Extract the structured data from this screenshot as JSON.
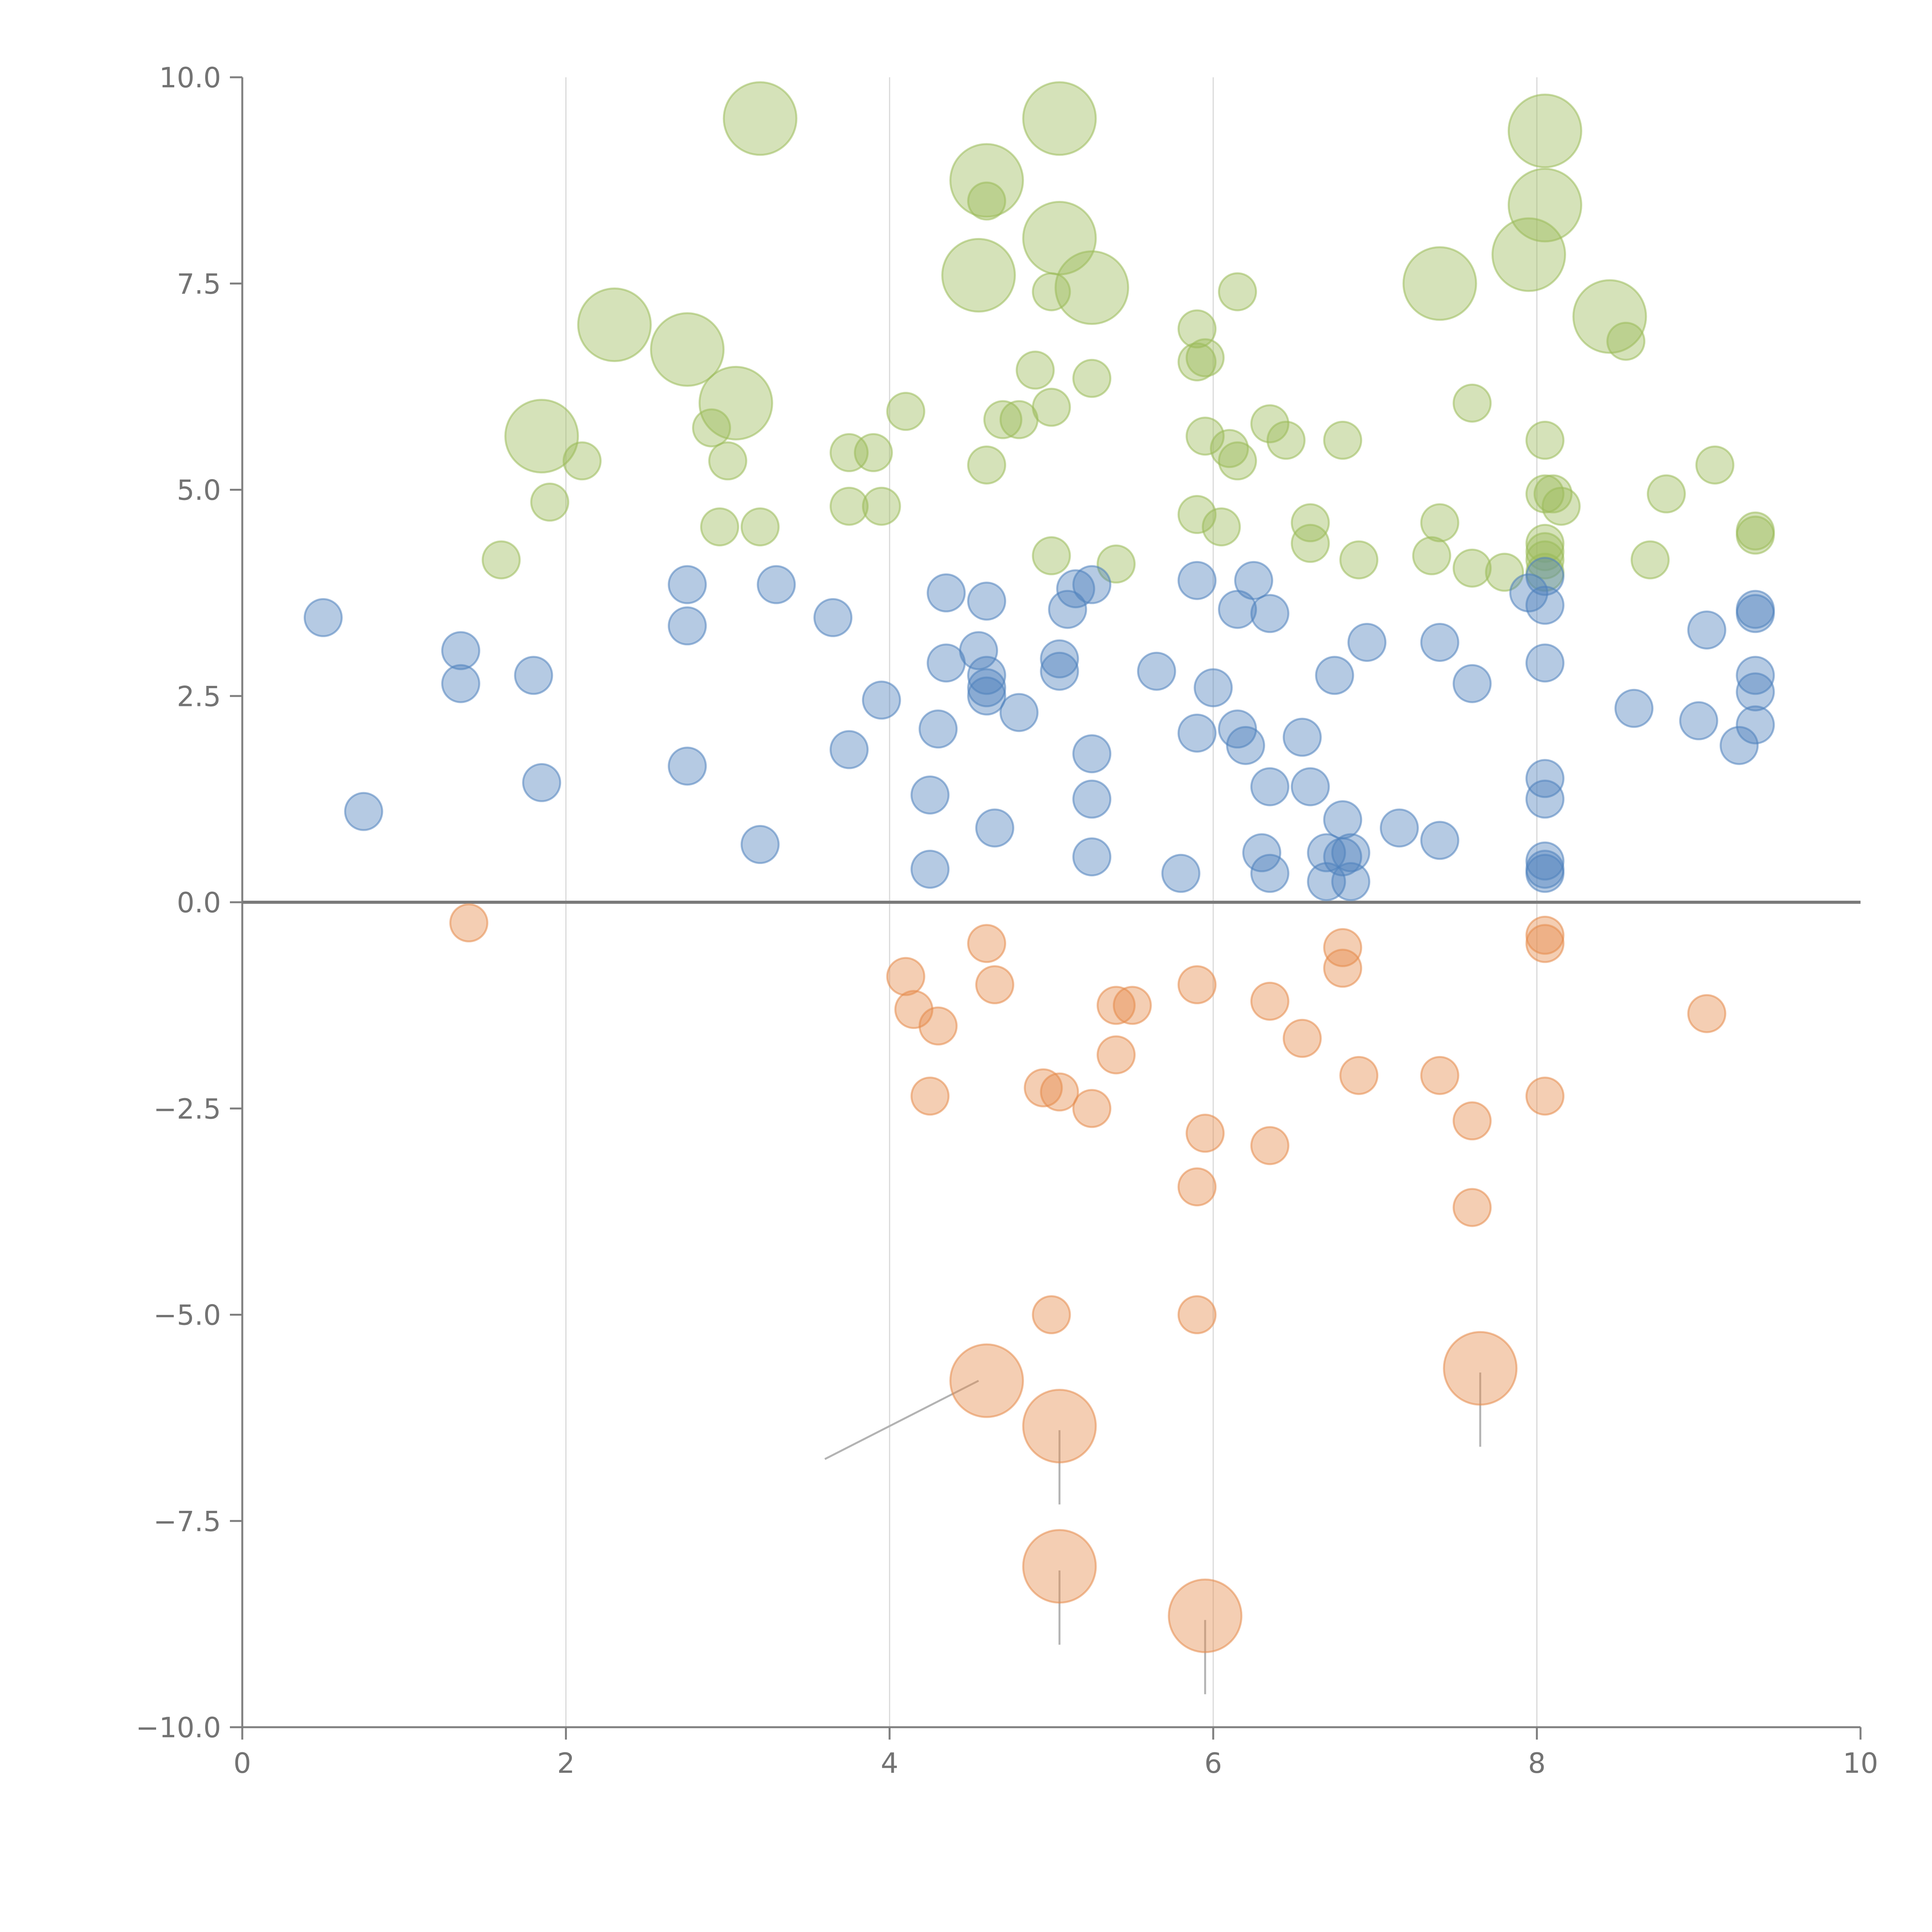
{
  "chart_data": {
    "type": "scatter",
    "subtype": "bubble",
    "title": "",
    "xlabel": "",
    "ylabel": "",
    "xlim": [
      0,
      10
    ],
    "ylim": [
      -10,
      10
    ],
    "x_ticks": [
      0,
      2,
      4,
      6,
      8,
      10
    ],
    "x_tick_labels": [
      "0",
      "2",
      "4",
      "6",
      "8",
      "10"
    ],
    "y_ticks": [
      -10,
      -7.5,
      -5,
      -2.5,
      0,
      2.5,
      5,
      7.5,
      10
    ],
    "y_tick_labels": [
      "−10.0",
      "−7.5",
      "−5.0",
      "−2.5",
      "0.0",
      "2.5",
      "5.0",
      "7.5",
      "10.0"
    ],
    "vertical_grid": [
      2,
      4,
      6,
      8
    ],
    "zero_line": 0,
    "legend": "none",
    "series": [
      {
        "name": "green",
        "color": "#9bbb59",
        "points": [
          [
            3.2,
            9.5,
            2
          ],
          [
            5.05,
            9.5,
            2
          ],
          [
            8.05,
            9.35,
            2
          ],
          [
            4.6,
            8.75,
            2
          ],
          [
            4.6,
            8.5,
            1
          ],
          [
            8.05,
            8.45,
            2
          ],
          [
            5.05,
            8.05,
            2
          ],
          [
            7.95,
            7.85,
            2
          ],
          [
            4.55,
            7.6,
            2
          ],
          [
            7.4,
            7.5,
            2
          ],
          [
            5.25,
            7.45,
            2
          ],
          [
            5.0,
            7.4,
            1
          ],
          [
            6.15,
            7.4,
            1
          ],
          [
            2.3,
            7.0,
            2
          ],
          [
            5.9,
            6.95,
            1
          ],
          [
            8.45,
            7.1,
            2
          ],
          [
            2.75,
            6.7,
            2
          ],
          [
            8.55,
            6.8,
            1
          ],
          [
            5.95,
            6.6,
            1
          ],
          [
            5.9,
            6.55,
            1
          ],
          [
            4.9,
            6.45,
            1
          ],
          [
            5.25,
            6.35,
            1
          ],
          [
            3.05,
            6.05,
            2
          ],
          [
            4.1,
            5.95,
            1
          ],
          [
            5.0,
            6.0,
            1
          ],
          [
            7.6,
            6.05,
            1
          ],
          [
            4.7,
            5.85,
            1
          ],
          [
            4.8,
            5.85,
            1
          ],
          [
            2.9,
            5.75,
            1
          ],
          [
            6.35,
            5.8,
            1
          ],
          [
            1.85,
            5.65,
            2
          ],
          [
            5.95,
            5.65,
            1
          ],
          [
            6.45,
            5.6,
            1
          ],
          [
            6.8,
            5.6,
            1
          ],
          [
            8.05,
            5.6,
            1
          ],
          [
            6.1,
            5.5,
            1
          ],
          [
            3.75,
            5.45,
            1
          ],
          [
            3.9,
            5.45,
            1
          ],
          [
            6.15,
            5.35,
            1
          ],
          [
            2.1,
            5.35,
            1
          ],
          [
            3.0,
            5.35,
            1
          ],
          [
            9.1,
            5.3,
            1
          ],
          [
            4.6,
            5.3,
            1
          ],
          [
            8.05,
            4.95,
            1
          ],
          [
            8.1,
            4.95,
            1
          ],
          [
            8.8,
            4.95,
            1
          ],
          [
            1.9,
            4.85,
            1
          ],
          [
            3.75,
            4.8,
            1
          ],
          [
            3.95,
            4.8,
            1
          ],
          [
            8.15,
            4.8,
            1
          ],
          [
            5.9,
            4.7,
            1
          ],
          [
            6.05,
            4.55,
            1
          ],
          [
            6.6,
            4.6,
            1
          ],
          [
            7.4,
            4.6,
            1
          ],
          [
            2.95,
            4.55,
            1
          ],
          [
            3.2,
            4.55,
            1
          ],
          [
            9.35,
            4.5,
            1
          ],
          [
            9.35,
            4.45,
            1
          ],
          [
            6.6,
            4.35,
            1
          ],
          [
            8.05,
            4.35,
            1
          ],
          [
            8.05,
            4.25,
            1
          ],
          [
            5.0,
            4.2,
            1
          ],
          [
            7.35,
            4.2,
            1
          ],
          [
            8.05,
            4.15,
            1
          ],
          [
            1.6,
            4.15,
            1
          ],
          [
            6.9,
            4.15,
            1
          ],
          [
            8.7,
            4.15,
            1
          ],
          [
            5.4,
            4.1,
            1
          ],
          [
            7.6,
            4.05,
            1
          ],
          [
            7.8,
            4.0,
            1
          ],
          [
            8.05,
            4.0,
            1
          ]
        ]
      },
      {
        "name": "blue",
        "color": "#4f81bd",
        "points": [
          [
            8.05,
            3.95,
            1
          ],
          [
            5.9,
            3.9,
            1
          ],
          [
            6.25,
            3.9,
            1
          ],
          [
            2.75,
            3.85,
            1
          ],
          [
            3.3,
            3.85,
            1
          ],
          [
            5.25,
            3.85,
            1
          ],
          [
            5.15,
            3.8,
            1
          ],
          [
            4.35,
            3.75,
            1
          ],
          [
            7.95,
            3.75,
            1
          ],
          [
            4.6,
            3.65,
            1
          ],
          [
            8.05,
            3.6,
            1
          ],
          [
            6.15,
            3.55,
            1
          ],
          [
            9.35,
            3.55,
            1
          ],
          [
            9.35,
            3.5,
            1
          ],
          [
            5.1,
            3.55,
            1
          ],
          [
            6.35,
            3.5,
            1
          ],
          [
            0.5,
            3.45,
            1
          ],
          [
            3.65,
            3.45,
            1
          ],
          [
            2.75,
            3.35,
            1
          ],
          [
            9.05,
            3.3,
            1
          ],
          [
            6.95,
            3.15,
            1
          ],
          [
            7.4,
            3.15,
            1
          ],
          [
            1.35,
            3.05,
            1
          ],
          [
            4.55,
            3.05,
            1
          ],
          [
            5.05,
            2.95,
            1
          ],
          [
            8.05,
            2.9,
            1
          ],
          [
            4.35,
            2.9,
            1
          ],
          [
            5.05,
            2.8,
            1
          ],
          [
            5.65,
            2.8,
            1
          ],
          [
            1.8,
            2.75,
            1
          ],
          [
            9.35,
            2.75,
            1
          ],
          [
            4.6,
            2.75,
            1
          ],
          [
            6.75,
            2.75,
            1
          ],
          [
            7.6,
            2.65,
            1
          ],
          [
            1.35,
            2.65,
            1
          ],
          [
            6.0,
            2.6,
            1
          ],
          [
            4.6,
            2.6,
            1
          ],
          [
            9.35,
            2.55,
            1
          ],
          [
            3.95,
            2.45,
            1
          ],
          [
            4.6,
            2.5,
            1
          ],
          [
            8.6,
            2.35,
            1
          ],
          [
            4.8,
            2.3,
            1
          ],
          [
            9.0,
            2.2,
            1
          ],
          [
            9.35,
            2.15,
            1
          ],
          [
            4.3,
            2.1,
            1
          ],
          [
            6.15,
            2.1,
            1
          ],
          [
            5.9,
            2.05,
            1
          ],
          [
            6.55,
            2.0,
            1
          ],
          [
            6.2,
            1.9,
            1
          ],
          [
            9.25,
            1.9,
            1
          ],
          [
            3.75,
            1.85,
            1
          ],
          [
            5.25,
            1.8,
            1
          ],
          [
            2.75,
            1.65,
            1
          ],
          [
            8.05,
            1.5,
            1
          ],
          [
            1.85,
            1.45,
            1
          ],
          [
            6.35,
            1.4,
            1
          ],
          [
            6.6,
            1.4,
            1
          ],
          [
            4.25,
            1.3,
            1
          ],
          [
            5.25,
            1.25,
            1
          ],
          [
            8.05,
            1.25,
            1
          ],
          [
            0.75,
            1.1,
            1
          ],
          [
            6.8,
            1.0,
            1
          ],
          [
            4.65,
            0.9,
            1
          ],
          [
            7.15,
            0.9,
            1
          ],
          [
            7.4,
            0.75,
            1
          ],
          [
            3.2,
            0.7,
            1
          ],
          [
            6.3,
            0.6,
            1
          ],
          [
            6.7,
            0.6,
            1
          ],
          [
            6.85,
            0.6,
            1
          ],
          [
            6.8,
            0.55,
            1
          ],
          [
            5.25,
            0.55,
            1
          ],
          [
            8.05,
            0.5,
            1
          ],
          [
            8.05,
            0.4,
            1
          ],
          [
            4.25,
            0.4,
            1
          ],
          [
            5.8,
            0.35,
            1
          ],
          [
            8.05,
            0.35,
            1
          ],
          [
            6.35,
            0.35,
            1
          ],
          [
            6.7,
            0.25,
            1
          ],
          [
            6.85,
            0.25,
            1
          ]
        ]
      },
      {
        "name": "orange",
        "color": "#e58b4a",
        "points": [
          [
            1.4,
            -0.25,
            1
          ],
          [
            8.05,
            -0.4,
            1
          ],
          [
            4.6,
            -0.5,
            1
          ],
          [
            8.05,
            -0.5,
            1
          ],
          [
            6.8,
            -0.55,
            1
          ],
          [
            6.8,
            -0.8,
            1
          ],
          [
            4.1,
            -0.9,
            1
          ],
          [
            4.65,
            -1.0,
            1
          ],
          [
            5.9,
            -1.0,
            1
          ],
          [
            6.35,
            -1.2,
            1
          ],
          [
            5.4,
            -1.25,
            1
          ],
          [
            5.5,
            -1.25,
            1
          ],
          [
            4.15,
            -1.3,
            1
          ],
          [
            9.05,
            -1.35,
            1
          ],
          [
            4.3,
            -1.5,
            1
          ],
          [
            6.55,
            -1.65,
            1
          ],
          [
            5.4,
            -1.85,
            1
          ],
          [
            7.4,
            -2.1,
            1
          ],
          [
            6.9,
            -2.1,
            1
          ],
          [
            4.95,
            -2.25,
            1
          ],
          [
            5.05,
            -2.3,
            1
          ],
          [
            4.25,
            -2.35,
            1
          ],
          [
            8.05,
            -2.35,
            1
          ],
          [
            5.25,
            -2.5,
            1
          ],
          [
            7.6,
            -2.65,
            1
          ],
          [
            5.95,
            -2.8,
            1
          ],
          [
            6.35,
            -2.95,
            1
          ],
          [
            5.9,
            -3.45,
            1
          ],
          [
            7.6,
            -3.7,
            1
          ],
          [
            5.0,
            -5.0,
            1
          ],
          [
            5.9,
            -5.0,
            1
          ],
          [
            4.6,
            -5.8,
            2
          ],
          [
            7.65,
            -5.65,
            2
          ],
          [
            5.05,
            -6.35,
            2
          ],
          [
            5.05,
            -8.05,
            2
          ],
          [
            5.95,
            -8.65,
            2
          ]
        ]
      }
    ],
    "leader_lines": [
      [
        [
          4.55,
          -5.8
        ],
        [
          3.6,
          -6.75
        ]
      ],
      [
        [
          5.05,
          -6.4
        ],
        [
          5.05,
          -7.3
        ]
      ],
      [
        [
          7.65,
          -5.7
        ],
        [
          7.65,
          -6.6
        ]
      ],
      [
        [
          5.05,
          -8.1
        ],
        [
          5.05,
          -9.0
        ]
      ],
      [
        [
          5.95,
          -8.7
        ],
        [
          5.95,
          -9.6
        ]
      ]
    ]
  }
}
